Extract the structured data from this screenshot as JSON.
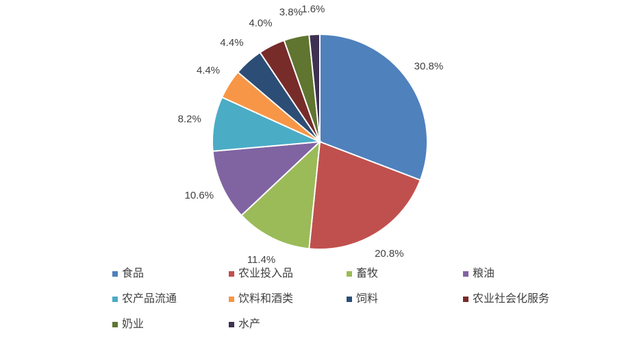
{
  "chart_data": {
    "type": "pie",
    "categories": [
      "食品",
      "农业投入品",
      "畜牧",
      "粮油",
      "农产品流通",
      "饮料和酒类",
      "饲料",
      "农业社会化服务",
      "奶业",
      "水产"
    ],
    "values": [
      30.8,
      20.8,
      11.4,
      10.6,
      8.2,
      4.4,
      4.4,
      4.0,
      3.8,
      1.6
    ],
    "value_labels": [
      "30.8%",
      "20.8%",
      "11.4%",
      "10.6%",
      "8.2%",
      "4.4%",
      "4.4%",
      "4.0%",
      "3.8%",
      "1.6%"
    ],
    "colors": [
      "#4f81bd",
      "#c0504d",
      "#9bbb59",
      "#8064a2",
      "#4bacc6",
      "#f79646",
      "#2c4d75",
      "#772c2a",
      "#5f7530",
      "#3f3151"
    ],
    "legend": "bottom"
  }
}
